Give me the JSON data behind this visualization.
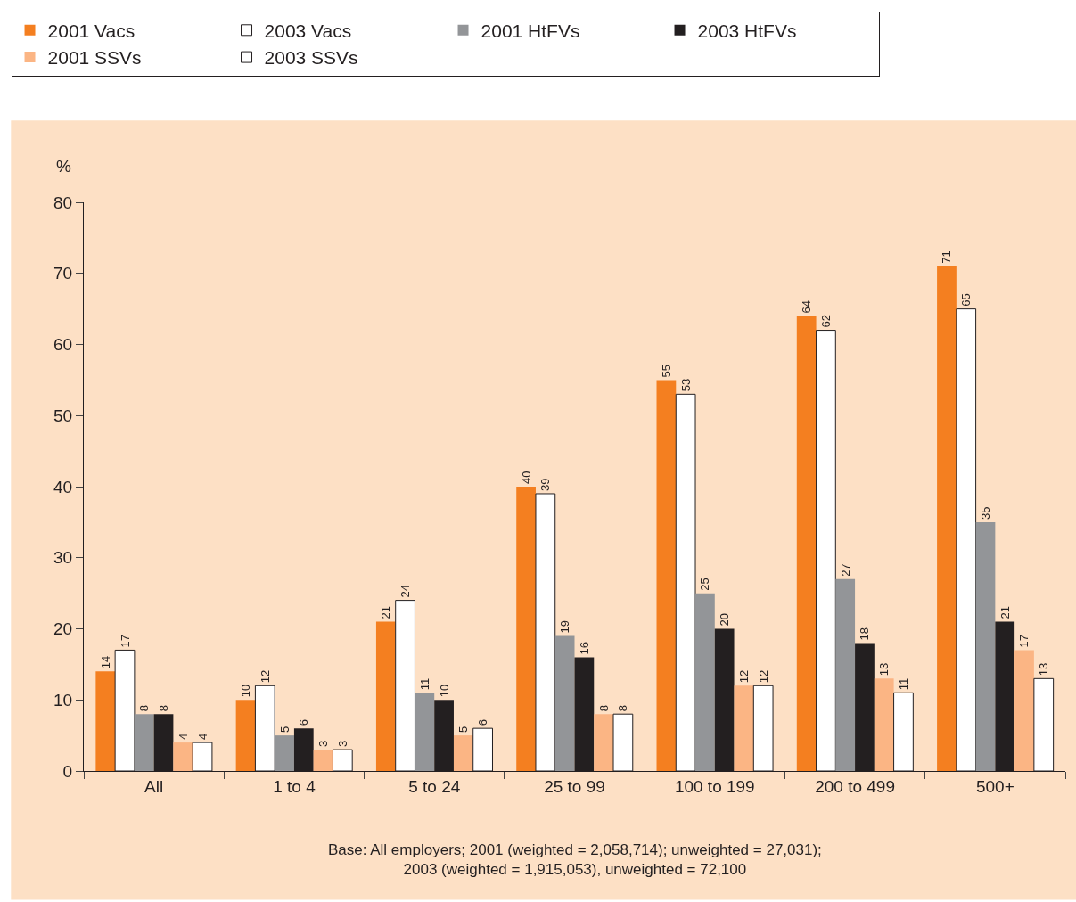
{
  "chart_data": {
    "type": "bar",
    "ylabel": "%",
    "categories": [
      "All",
      "1 to 4",
      "5 to 24",
      "25 to 99",
      "100 to 199",
      "200 to 499",
      "500+"
    ],
    "series": [
      {
        "name": "2001 Vacs",
        "color": "#f47f20",
        "values": [
          14,
          10,
          21,
          40,
          55,
          64,
          71
        ]
      },
      {
        "name": "2003 Vacs",
        "color": "#ffffff",
        "values": [
          17,
          12,
          24,
          39,
          53,
          62,
          65
        ]
      },
      {
        "name": "2001 HtFVs",
        "color": "#939598",
        "values": [
          8,
          5,
          11,
          19,
          25,
          27,
          35
        ]
      },
      {
        "name": "2003 HtFVs",
        "color": "#231f20",
        "values": [
          8,
          6,
          10,
          16,
          20,
          18,
          21
        ]
      },
      {
        "name": "2001 SSVs",
        "color": "#fbb584",
        "values": [
          4,
          3,
          5,
          8,
          12,
          13,
          17
        ]
      },
      {
        "name": "2003 SSVs",
        "color": "#ffffff",
        "values": [
          4,
          3,
          6,
          8,
          12,
          11,
          13
        ]
      }
    ],
    "ylim": [
      0,
      80
    ],
    "yticks": [
      0,
      10,
      20,
      30,
      40,
      50,
      60,
      70,
      80
    ],
    "grid": false,
    "legend": "top",
    "data_labels": true,
    "annotations": [
      "Base: All employers; 2001 (weighted = 2,058,714); unweighted = 27,031);\n2003 (weighted = 1,915,053), unweighted = 72,100"
    ]
  }
}
